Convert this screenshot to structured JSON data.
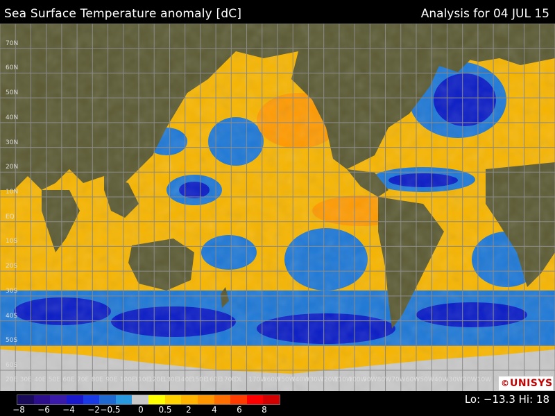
{
  "header": {
    "title": "Sea Surface Temperature anomaly [dC]",
    "analysis": "Analysis for 04 JUL 15"
  },
  "map": {
    "lat_labels": [
      "70N",
      "60N",
      "50N",
      "40N",
      "30N",
      "20N",
      "10N",
      "EQ",
      "10S",
      "20S",
      "30S",
      "40S",
      "50S",
      "60S"
    ],
    "lon_labels": [
      "20E",
      "30E",
      "40E",
      "50E",
      "60E",
      "70E",
      "80E",
      "90E",
      "100E",
      "110E",
      "120E",
      "130E",
      "140E",
      "150E",
      "160E",
      "170E",
      "DL",
      "170W",
      "160W",
      "150W",
      "140W",
      "130W",
      "120W",
      "110W",
      "100W",
      "90W",
      "80W",
      "70W",
      "60W",
      "50W",
      "40W",
      "30W",
      "20W",
      "10W"
    ],
    "colors": {
      "land": "#5b5a33",
      "ice": "#c8c8c8",
      "ocean_warm": "#f7b500",
      "ocean_cool": "#1d78d6",
      "ocean_cold": "#0a1cc6",
      "grid": "#8a8a8a"
    }
  },
  "legend": {
    "colors": [
      "#1a0a5a",
      "#2d0e8c",
      "#3a1aa8",
      "#1a1acc",
      "#1a3ae6",
      "#1e6ad2",
      "#2a9ae0",
      "#c8c8c8",
      "#ffff00",
      "#ffd200",
      "#ffb400",
      "#ff9600",
      "#ff6e00",
      "#ff3c00",
      "#ff0000",
      "#d20000"
    ],
    "tick_labels": [
      "−8",
      "−6",
      "−4",
      "−2",
      "−0.5",
      "0",
      "0.5",
      "2",
      "4",
      "6",
      "8"
    ]
  },
  "brand": {
    "copyright": "©",
    "name": "UNISYS"
  },
  "stats": {
    "text": "Lo: −13.3  Hi: 18"
  }
}
